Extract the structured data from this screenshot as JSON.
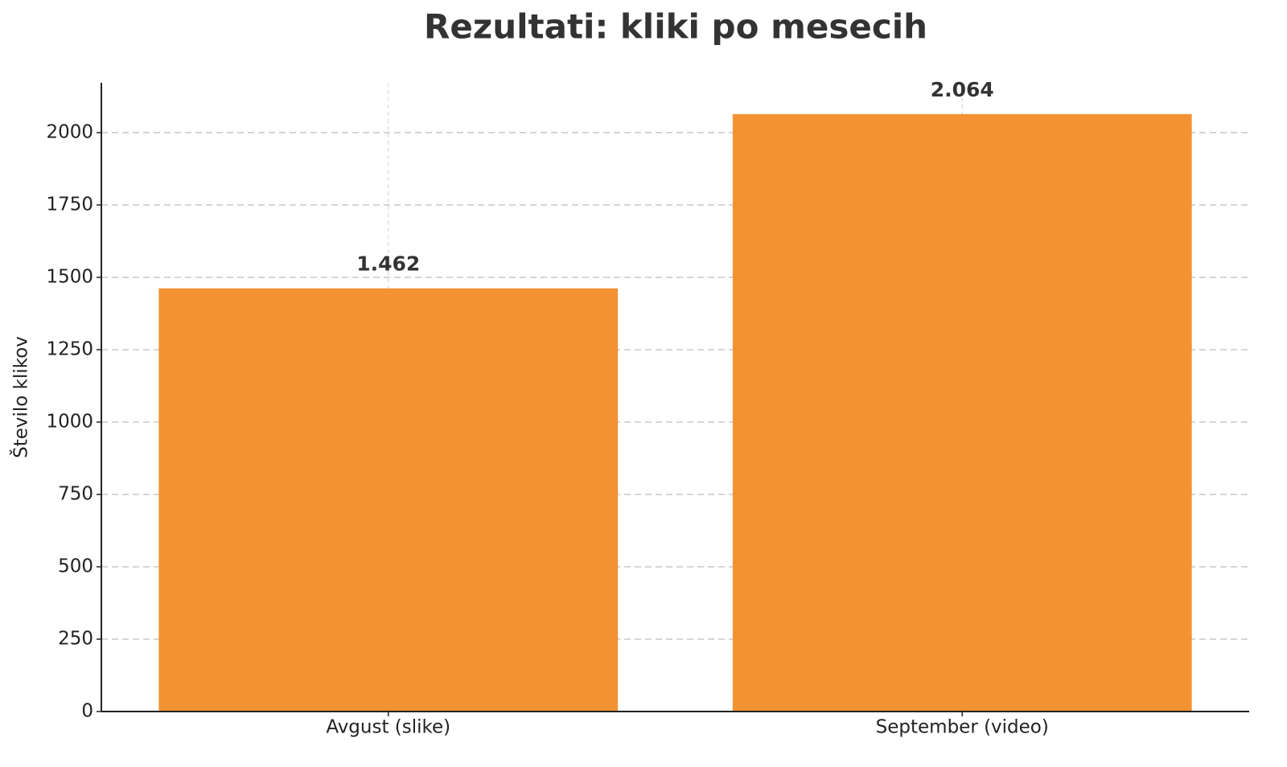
{
  "chart_data": {
    "type": "bar",
    "title": "Rezultati: kliki po mesecih",
    "y_label": "Število klikov",
    "categories": [
      "Avgust (slike)",
      "September (video)"
    ],
    "values": [
      1462,
      2064
    ],
    "value_labels": [
      "1.462",
      "2.064"
    ],
    "color": "#f28c28",
    "ylim": [
      0,
      2172
    ],
    "yticks": [
      0,
      250,
      500,
      750,
      1000,
      1250,
      1500,
      1750,
      2000
    ],
    "grid": true
  }
}
